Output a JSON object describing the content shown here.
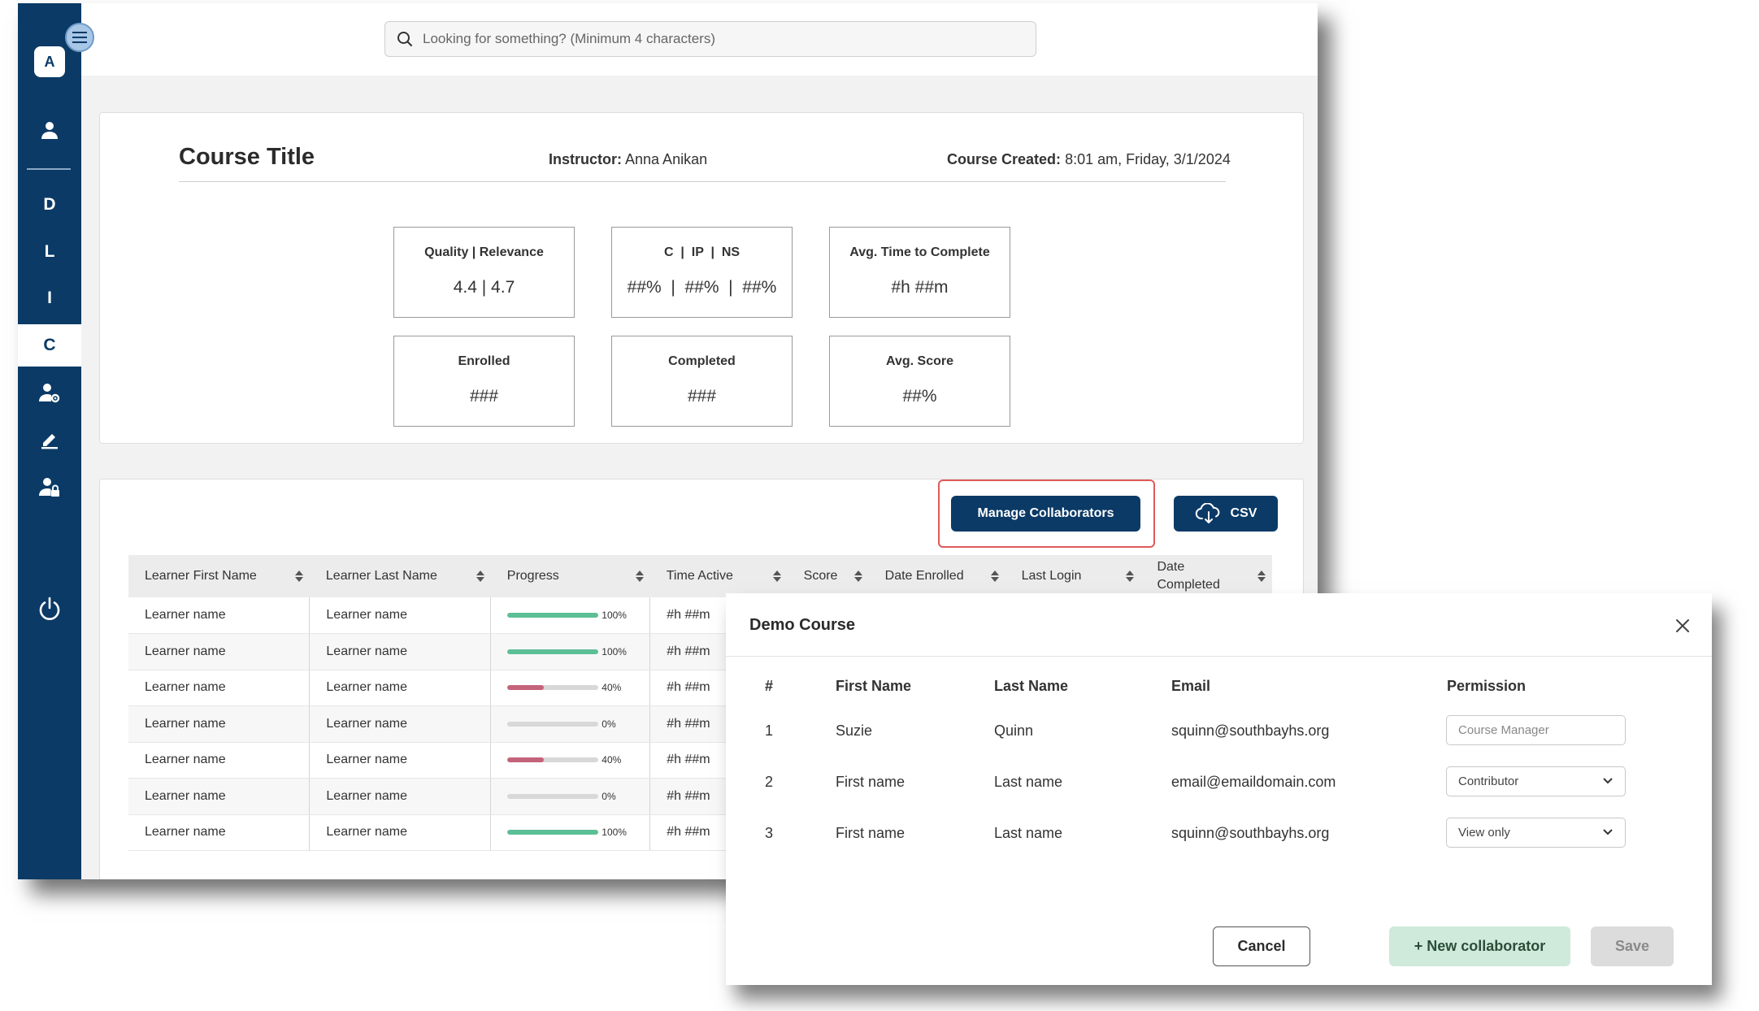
{
  "search": {
    "placeholder": "Looking for something? (Minimum 4 characters)"
  },
  "sidebar": {
    "avatar": "A",
    "letters": [
      "D",
      "L",
      "I",
      "C"
    ],
    "active": "C"
  },
  "course": {
    "title": "Course Title",
    "instructor_label": "Instructor:",
    "instructor_value": "Anna Anikan",
    "created_label": "Course Created:",
    "created_value": "8:01 am, Friday, 3/1/2024"
  },
  "stats": [
    {
      "label": "Quality | Relevance",
      "value": "4.4 | 4.7"
    },
    {
      "label": "C  |  IP  |  NS",
      "value": "##%  |  ##%  |  ##%"
    },
    {
      "label": "Avg. Time to Complete",
      "value": "#h ##m"
    },
    {
      "label": "Enrolled",
      "value": "###"
    },
    {
      "label": "Completed",
      "value": "###"
    },
    {
      "label": "Avg. Score",
      "value": "##%"
    }
  ],
  "toolbar": {
    "manage_label": "Manage Collaborators",
    "csv_label": "CSV"
  },
  "table": {
    "headers": [
      "Learner First Name",
      "Learner Last Name",
      "Progress",
      "Time Active",
      "Score",
      "Date Enrolled",
      "Last Login",
      "Date\nCompleted"
    ],
    "rows": [
      {
        "first": "Learner name",
        "last": "Learner name",
        "progress": 100,
        "progress_label": "100%",
        "time": "#h ##m"
      },
      {
        "first": "Learner name",
        "last": "Learner name",
        "progress": 100,
        "progress_label": "100%",
        "time": "#h ##m"
      },
      {
        "first": "Learner name",
        "last": "Learner name",
        "progress": 40,
        "progress_label": "40%",
        "time": "#h ##m"
      },
      {
        "first": "Learner name",
        "last": "Learner name",
        "progress": 0,
        "progress_label": "0%",
        "time": "#h ##m"
      },
      {
        "first": "Learner name",
        "last": "Learner name",
        "progress": 40,
        "progress_label": "40%",
        "time": "#h ##m"
      },
      {
        "first": "Learner name",
        "last": "Learner name",
        "progress": 0,
        "progress_label": "0%",
        "time": "#h ##m"
      },
      {
        "first": "Learner name",
        "last": "Learner name",
        "progress": 100,
        "progress_label": "100%",
        "time": "#h ##m"
      }
    ]
  },
  "modal": {
    "title": "Demo Course",
    "headers": {
      "num": "#",
      "first": "First Name",
      "last": "Last Name",
      "email": "Email",
      "permission": "Permission"
    },
    "rows": [
      {
        "num": "1",
        "first": "Suzie",
        "last": "Quinn",
        "email": "squinn@southbayhs.org",
        "permission_placeholder": "Course Manager"
      },
      {
        "num": "2",
        "first": "First name",
        "last": "Last name",
        "email": "email@emaildomain.com",
        "permission": "Contributor"
      },
      {
        "num": "3",
        "first": "First name",
        "last": "Last name",
        "email": "squinn@southbayhs.org",
        "permission": "View only"
      }
    ],
    "cancel_label": "Cancel",
    "new_label": "+ New collaborator",
    "save_label": "Save"
  },
  "colors": {
    "navy": "#0b3a66",
    "progress_full": "#5cbf95",
    "progress_partial": "#c4637a",
    "highlight": "#e05a5a"
  },
  "icons": [
    "menu-icon",
    "user-icon",
    "user-gear-icon",
    "pencil-icon",
    "user-lock-icon",
    "power-icon",
    "search-icon",
    "cloud-download-icon",
    "close-icon",
    "chevron-down-icon"
  ]
}
